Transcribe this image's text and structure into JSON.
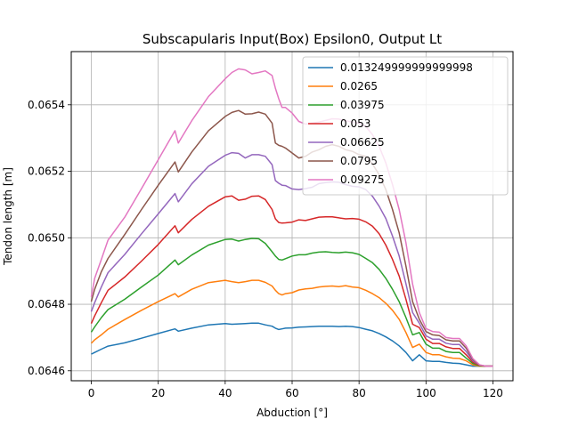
{
  "chart_data": {
    "type": "line",
    "title": "Subscapularis Input(Box) Epsilon0, Output Lt",
    "xlabel": "Abduction [°]",
    "ylabel": "Tendon length [m]",
    "xlim": [
      -6,
      126
    ],
    "ylim": [
      0.06457,
      0.06556
    ],
    "xticks": [
      0,
      20,
      40,
      60,
      80,
      100,
      120
    ],
    "xtick_labels": [
      "0",
      "20",
      "40",
      "60",
      "80",
      "100",
      "120"
    ],
    "yticks": [
      0.0646,
      0.0648,
      0.065,
      0.0652,
      0.0654
    ],
    "ytick_labels": [
      "0.0646",
      "0.0648",
      "0.0650",
      "0.0652",
      "0.0654"
    ],
    "grid": true,
    "legend_position": "top-right",
    "x": [
      0,
      1,
      3,
      5,
      10,
      15,
      20,
      25,
      26,
      30,
      35,
      40,
      42,
      44,
      46,
      48,
      50,
      52,
      54,
      55,
      56,
      57,
      58,
      60,
      62,
      64,
      66,
      68,
      70,
      72,
      74,
      76,
      78,
      80,
      82,
      84,
      86,
      88,
      90,
      92,
      94,
      96,
      98,
      100,
      102,
      104,
      106,
      108,
      110,
      112,
      114,
      116,
      118,
      120
    ],
    "series": [
      {
        "name": "0.013249999999999998",
        "color": "#1f77b4",
        "values": [
          0.06465,
          0.064655,
          0.064665,
          0.064674,
          0.064684,
          0.064698,
          0.064712,
          0.064726,
          0.064719,
          0.064728,
          0.064738,
          0.064742,
          0.06474,
          0.064741,
          0.064742,
          0.064743,
          0.064743,
          0.064738,
          0.064734,
          0.064728,
          0.064724,
          0.064726,
          0.064728,
          0.064729,
          0.064731,
          0.064732,
          0.064733,
          0.064734,
          0.064734,
          0.064734,
          0.064733,
          0.064734,
          0.064733,
          0.06473,
          0.064725,
          0.06472,
          0.064712,
          0.064702,
          0.06469,
          0.064675,
          0.064655,
          0.06463,
          0.064648,
          0.06463,
          0.064628,
          0.064628,
          0.064625,
          0.064623,
          0.064622,
          0.064618,
          0.064614,
          0.064614,
          0.064614,
          0.064614
        ]
      },
      {
        "name": "0.0265",
        "color": "#ff7f0e",
        "values": [
          0.064683,
          0.064693,
          0.064708,
          0.064725,
          0.064754,
          0.064782,
          0.064808,
          0.064832,
          0.064822,
          0.064845,
          0.064865,
          0.064872,
          0.064868,
          0.064865,
          0.064868,
          0.064872,
          0.064872,
          0.064866,
          0.064855,
          0.064842,
          0.064832,
          0.064828,
          0.064832,
          0.064835,
          0.064843,
          0.064846,
          0.064848,
          0.064852,
          0.064854,
          0.064855,
          0.064853,
          0.064856,
          0.064852,
          0.06485,
          0.064842,
          0.064832,
          0.06482,
          0.064803,
          0.064782,
          0.064755,
          0.064715,
          0.06467,
          0.06468,
          0.064655,
          0.064648,
          0.064648,
          0.064642,
          0.064638,
          0.064637,
          0.06463,
          0.064618,
          0.064614,
          0.064614,
          0.064614
        ]
      },
      {
        "name": "0.03975",
        "color": "#2ca02c",
        "values": [
          0.064716,
          0.064732,
          0.06476,
          0.064784,
          0.064815,
          0.064852,
          0.064888,
          0.064933,
          0.064919,
          0.064948,
          0.064978,
          0.064995,
          0.064996,
          0.06499,
          0.064995,
          0.064998,
          0.064997,
          0.064983,
          0.064958,
          0.064945,
          0.064935,
          0.064933,
          0.064937,
          0.064945,
          0.064949,
          0.064949,
          0.064954,
          0.064957,
          0.064958,
          0.064956,
          0.064955,
          0.064957,
          0.064955,
          0.06495,
          0.064938,
          0.064925,
          0.064905,
          0.064878,
          0.064845,
          0.064808,
          0.06476,
          0.064708,
          0.064715,
          0.06468,
          0.064668,
          0.064668,
          0.064658,
          0.064655,
          0.064655,
          0.064638,
          0.064622,
          0.064615,
          0.064614,
          0.064614
        ]
      },
      {
        "name": "0.053",
        "color": "#d62728",
        "values": [
          0.064742,
          0.064765,
          0.064805,
          0.064842,
          0.064882,
          0.06493,
          0.06498,
          0.065036,
          0.065015,
          0.065055,
          0.065095,
          0.065123,
          0.065126,
          0.065113,
          0.065116,
          0.065125,
          0.065126,
          0.065115,
          0.065085,
          0.065057,
          0.065046,
          0.065044,
          0.065045,
          0.065047,
          0.065054,
          0.065052,
          0.065057,
          0.065062,
          0.065063,
          0.065063,
          0.06506,
          0.065057,
          0.065058,
          0.065056,
          0.065048,
          0.065035,
          0.065012,
          0.064978,
          0.064935,
          0.064885,
          0.064815,
          0.06474,
          0.06473,
          0.064695,
          0.064682,
          0.064682,
          0.064672,
          0.064667,
          0.064667,
          0.064648,
          0.064626,
          0.064616,
          0.064614,
          0.064614
        ]
      },
      {
        "name": "0.06625",
        "color": "#9467bd",
        "values": [
          0.064778,
          0.064805,
          0.064852,
          0.064895,
          0.06495,
          0.065012,
          0.065072,
          0.065133,
          0.065108,
          0.065162,
          0.065215,
          0.065248,
          0.065256,
          0.065254,
          0.06524,
          0.06525,
          0.06525,
          0.065245,
          0.06522,
          0.065172,
          0.065164,
          0.065158,
          0.065157,
          0.065147,
          0.065145,
          0.065148,
          0.065152,
          0.065163,
          0.065166,
          0.065168,
          0.065167,
          0.06516,
          0.065155,
          0.065153,
          0.065145,
          0.065125,
          0.065095,
          0.065058,
          0.065005,
          0.064945,
          0.064862,
          0.064775,
          0.064743,
          0.064705,
          0.064695,
          0.064695,
          0.064683,
          0.064679,
          0.064679,
          0.064658,
          0.06463,
          0.064617,
          0.064614,
          0.064614
        ]
      },
      {
        "name": "0.0795",
        "color": "#8c564b",
        "values": [
          0.064808,
          0.064845,
          0.064898,
          0.064938,
          0.06501,
          0.065085,
          0.065158,
          0.065228,
          0.065198,
          0.065258,
          0.065322,
          0.065365,
          0.065377,
          0.065383,
          0.065372,
          0.065373,
          0.065378,
          0.065372,
          0.065345,
          0.065285,
          0.065278,
          0.065275,
          0.06527,
          0.065255,
          0.06524,
          0.065245,
          0.065258,
          0.065265,
          0.065275,
          0.06528,
          0.065275,
          0.065265,
          0.06526,
          0.06525,
          0.065245,
          0.065222,
          0.06519,
          0.065145,
          0.065085,
          0.065015,
          0.064915,
          0.064808,
          0.064755,
          0.064718,
          0.064708,
          0.064706,
          0.064693,
          0.06469,
          0.06469,
          0.064668,
          0.064634,
          0.064617,
          0.064614,
          0.064614
        ]
      },
      {
        "name": "0.09275",
        "color": "#e377c2",
        "values": [
          0.064822,
          0.064878,
          0.064935,
          0.064993,
          0.065062,
          0.065148,
          0.065235,
          0.065322,
          0.065285,
          0.065352,
          0.065425,
          0.065478,
          0.065497,
          0.065508,
          0.065505,
          0.065493,
          0.065497,
          0.065502,
          0.065488,
          0.06545,
          0.065418,
          0.065392,
          0.065392,
          0.065375,
          0.06535,
          0.065342,
          0.065345,
          0.065348,
          0.065353,
          0.065358,
          0.065357,
          0.065352,
          0.065348,
          0.065345,
          0.065335,
          0.06531,
          0.065275,
          0.065225,
          0.06516,
          0.065085,
          0.064985,
          0.06486,
          0.064775,
          0.064727,
          0.064718,
          0.064716,
          0.0647,
          0.064697,
          0.064697,
          0.064675,
          0.064637,
          0.064618,
          0.064614,
          0.064614
        ]
      }
    ]
  }
}
